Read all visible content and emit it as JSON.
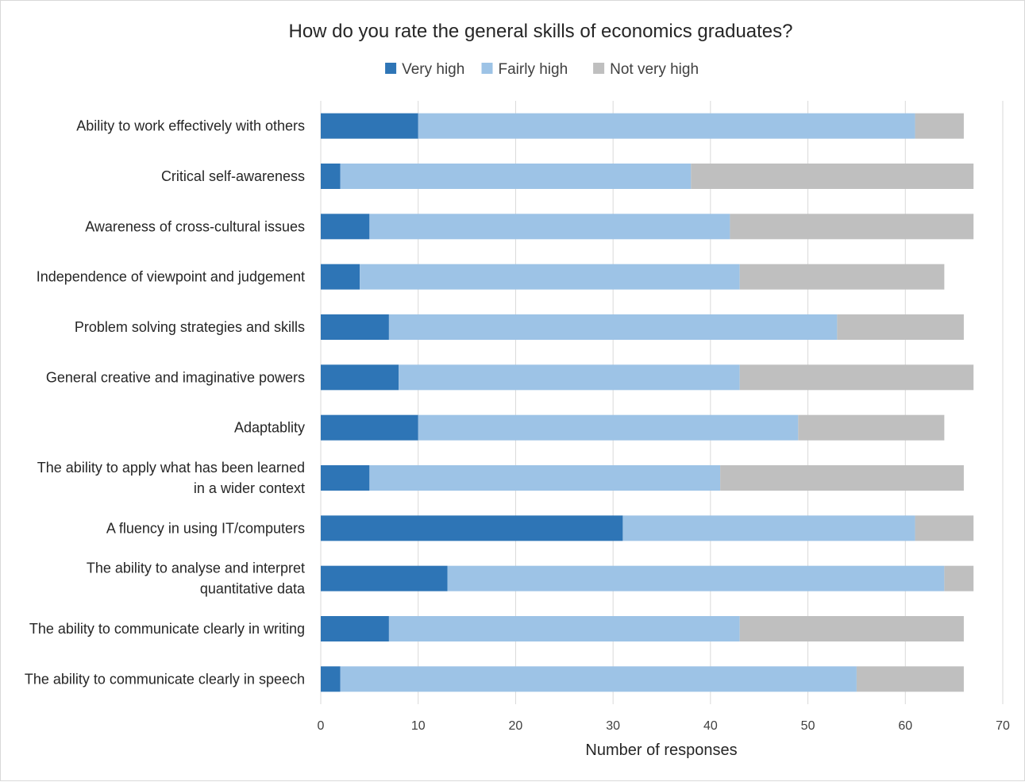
{
  "chart_data": {
    "type": "bar",
    "orientation": "horizontal",
    "stacked": true,
    "title": "How do you rate the general skills of economics graduates?",
    "xlabel": "Number of responses",
    "ylabel": "",
    "xlim": [
      0,
      70
    ],
    "xticks": [
      0,
      10,
      20,
      30,
      40,
      50,
      60,
      70
    ],
    "grid": "vertical",
    "legend_position": "top",
    "categories": [
      [
        "Ability to work effectively with others"
      ],
      [
        "Critical self-awareness"
      ],
      [
        "Awareness of cross-cultural issues"
      ],
      [
        "Independence of viewpoint and judgement"
      ],
      [
        "Problem solving strategies and skills"
      ],
      [
        "General creative and imaginative powers"
      ],
      [
        "Adaptablity"
      ],
      [
        "The ability to apply what has been learned",
        "in a wider context"
      ],
      [
        "A fluency in using IT/computers"
      ],
      [
        "The ability to analyse and interpret",
        "quantitative data"
      ],
      [
        "The ability to communicate clearly in writing"
      ],
      [
        "The ability to communicate clearly in speech"
      ]
    ],
    "series": [
      {
        "name": "Very high",
        "color": "#2e75b6",
        "values": [
          10,
          2,
          5,
          4,
          7,
          8,
          10,
          5,
          31,
          13,
          7,
          2
        ]
      },
      {
        "name": "Fairly high",
        "color": "#9dc3e6",
        "values": [
          51,
          36,
          37,
          39,
          46,
          35,
          39,
          36,
          30,
          51,
          36,
          53
        ]
      },
      {
        "name": "Not very high",
        "color": "#bfbfbf",
        "values": [
          5,
          29,
          25,
          21,
          13,
          24,
          15,
          25,
          6,
          3,
          23,
          11
        ]
      }
    ]
  }
}
